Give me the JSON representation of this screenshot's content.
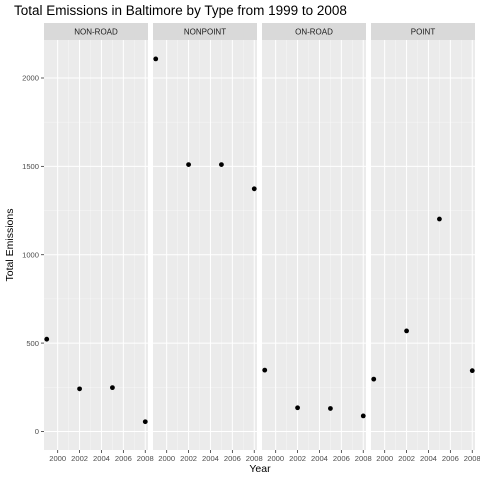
{
  "chart_data": {
    "type": "scatter",
    "title": "Total Emissions in Baltimore by Type from 1999 to 2008",
    "xlabel": "Year",
    "ylabel": "Total Emissions",
    "x_ticks": [
      2000,
      2002,
      2004,
      2006,
      2008
    ],
    "y_ticks": [
      0,
      500,
      1000,
      1500,
      2000
    ],
    "xlim": [
      1998.75,
      2008.25
    ],
    "ylim": [
      -105,
      2215
    ],
    "grid": true,
    "legend": "none",
    "facets": [
      {
        "name": "NON-ROAD",
        "x": [
          1999,
          2002,
          2005,
          2008
        ],
        "y": [
          522,
          241,
          248,
          55
        ]
      },
      {
        "name": "NONPOINT",
        "x": [
          1999,
          2002,
          2005,
          2008
        ],
        "y": [
          2108,
          1510,
          1510,
          1373
        ]
      },
      {
        "name": "ON-ROAD",
        "x": [
          1999,
          2002,
          2005,
          2008
        ],
        "y": [
          347,
          134,
          130,
          88
        ]
      },
      {
        "name": "POINT",
        "x": [
          1999,
          2002,
          2005,
          2008
        ],
        "y": [
          296,
          569,
          1202,
          344
        ]
      }
    ]
  },
  "colors": {
    "panel_background": "#ebebeb",
    "strip_background": "#d9d9d9",
    "grid_major": "#ffffff",
    "point": "#000000"
  }
}
